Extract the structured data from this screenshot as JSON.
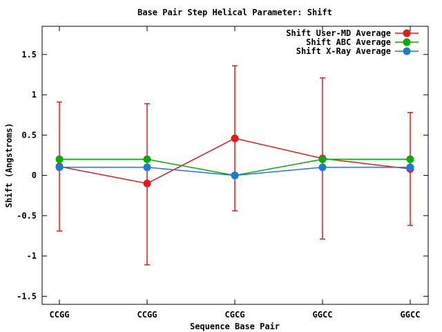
{
  "chart_data": {
    "type": "line",
    "title": "Base Pair Step Helical Parameter: Shift",
    "xlabel": "Sequence Base Pair",
    "ylabel": "Shift (Angstroms)",
    "categories": [
      "CCGG",
      "CCGG",
      "CGCG",
      "GGCC",
      "GGCC"
    ],
    "ylim": [
      -1.6,
      1.85
    ],
    "yticks": [
      -1.5,
      -1,
      -0.5,
      0,
      0.5,
      1,
      1.5
    ],
    "ytick_labels": [
      "-1.5",
      "-1",
      "-0.5",
      "0",
      "0.5",
      "1",
      "1.5"
    ],
    "legend_position": "top-right",
    "grid": false,
    "series": [
      {
        "name": "Shift User-MD Average",
        "color": "#e41a1c",
        "values": [
          0.11,
          -0.1,
          0.46,
          0.21,
          0.08
        ],
        "error_low": [
          -0.69,
          -1.11,
          -0.44,
          -0.79,
          -0.62
        ],
        "error_high": [
          0.91,
          0.89,
          1.36,
          1.21,
          0.78
        ]
      },
      {
        "name": "Shift ABC Average",
        "color": "#00b000",
        "values": [
          0.2,
          0.2,
          0.0,
          0.2,
          0.2
        ]
      },
      {
        "name": "Shift X-Ray Average",
        "color": "#1a7ad6",
        "values": [
          0.1,
          0.1,
          0.0,
          0.1,
          0.1
        ]
      }
    ]
  }
}
